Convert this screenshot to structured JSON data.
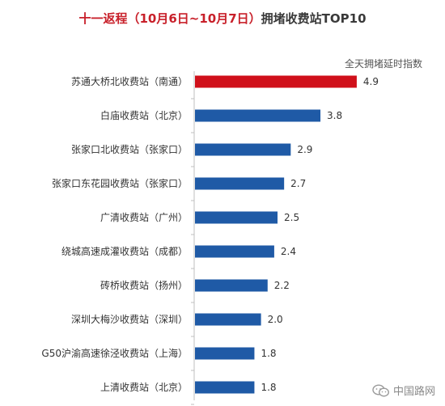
{
  "title": {
    "highlight": "十一返程（10月6日~10月7日）",
    "suffix": "拥堵收费站TOP10"
  },
  "metric_label": "全天拥堵延时指数",
  "watermark": "中国路网",
  "colors": {
    "highlight_bar": "#d0101a",
    "bar": "#1f5aa6",
    "axis": "#bfbfbf"
  },
  "chart_data": {
    "type": "bar",
    "orientation": "horizontal",
    "title": "十一返程（10月6日~10月7日）拥堵收费站TOP10",
    "value_label": "全天拥堵延时指数",
    "categories": [
      "苏通大桥北收费站（南通）",
      "白庙收费站（北京）",
      "张家口北收费站（张家口）",
      "张家口东花园收费站（张家口）",
      "广清收费站（广州）",
      "绕城高速成灌收费站（成都）",
      "砖桥收费站（扬州）",
      "深圳大梅沙收费站（深圳）",
      "G50沪渝高速徐泾收费站（上海）",
      "上清收费站（北京）"
    ],
    "values": [
      4.9,
      3.8,
      2.9,
      2.7,
      2.5,
      2.4,
      2.2,
      2.0,
      1.8,
      1.8
    ],
    "value_labels": [
      "4.9",
      "3.8",
      "2.9",
      "2.7",
      "2.5",
      "2.4",
      "2.2",
      "2.0",
      "1.8",
      "1.8"
    ],
    "xlim": [
      0,
      5.5
    ],
    "grid": false,
    "legend": "none"
  }
}
